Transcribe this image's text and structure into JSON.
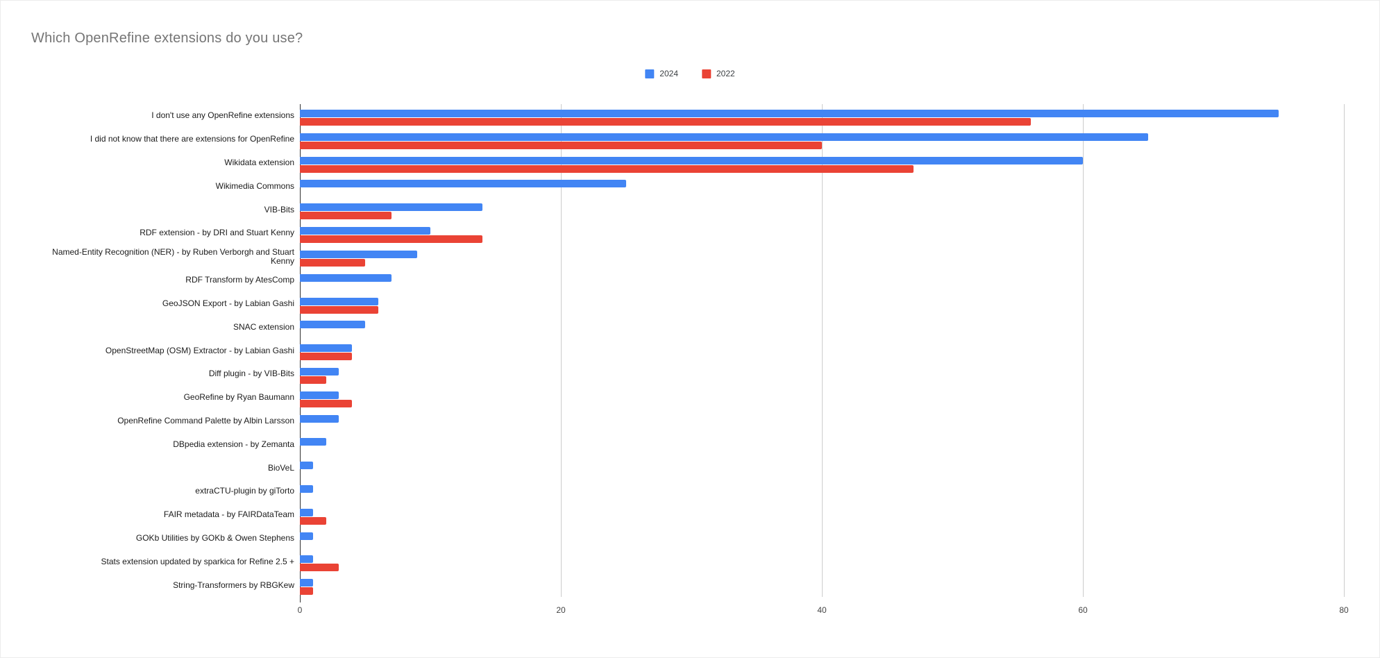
{
  "title": "Which OpenRefine extensions do you use?",
  "colors": {
    "series_2024": "#4285F4",
    "series_2022": "#EA4335",
    "title_text": "#757575",
    "gridline": "#cccccc",
    "axis_line": "#333333",
    "label_text": "#1a1a1a"
  },
  "legend": {
    "items": [
      {
        "label": "2024",
        "color": "#4285F4"
      },
      {
        "label": "2022",
        "color": "#EA4335"
      }
    ]
  },
  "chart_data": {
    "type": "bar",
    "orientation": "horizontal",
    "title": "Which OpenRefine extensions do you use?",
    "xlabel": "",
    "ylabel": "",
    "xlim": [
      0,
      80
    ],
    "x_ticks": [
      0,
      20,
      40,
      60,
      80
    ],
    "grid": true,
    "legend_position": "top",
    "categories": [
      "I don't use any OpenRefine extensions",
      "I did not know that there are extensions for OpenRefine",
      "Wikidata extension",
      "Wikimedia Commons",
      "VIB-Bits",
      "RDF extension - by DRI and Stuart Kenny",
      "Named-Entity Recognition (NER) - by Ruben Verborgh and Stuart Kenny",
      "RDF Transform by AtesComp",
      "GeoJSON Export - by Labian Gashi",
      "SNAC extension",
      "OpenStreetMap (OSM) Extractor - by Labian Gashi",
      "Diff plugin - by VIB-Bits",
      "GeoRefine by Ryan Baumann",
      "OpenRefine Command Palette by Albin Larsson",
      "DBpedia extension - by Zemanta",
      "BioVeL",
      "extraCTU-plugin by giTorto",
      "FAIR metadata - by FAIRDataTeam",
      "GOKb Utilities by GOKb & Owen Stephens",
      "Stats extension updated by sparkica for Refine 2.5 +",
      "String-Transformers by RBGKew"
    ],
    "series": [
      {
        "name": "2024",
        "color": "#4285F4",
        "values": [
          75,
          65,
          60,
          25,
          14,
          10,
          9,
          7,
          6,
          5,
          4,
          3,
          3,
          3,
          2,
          1,
          1,
          1,
          1,
          1,
          1
        ]
      },
      {
        "name": "2022",
        "color": "#EA4335",
        "values": [
          56,
          40,
          47,
          0,
          7,
          14,
          5,
          0,
          6,
          0,
          4,
          2,
          4,
          0,
          0,
          0,
          0,
          2,
          0,
          3,
          1
        ]
      }
    ]
  }
}
